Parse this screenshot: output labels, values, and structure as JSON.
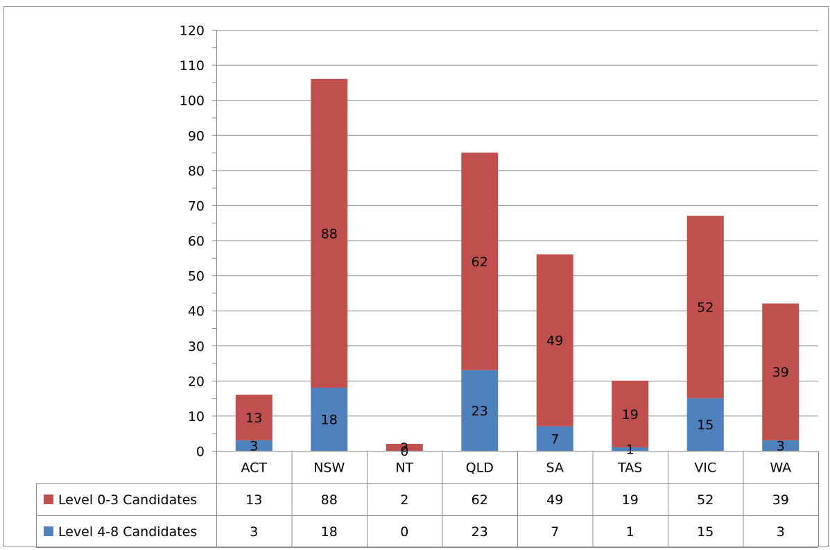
{
  "chart_data": {
    "type": "bar",
    "stacked": true,
    "categories": [
      "ACT",
      "NSW",
      "NT",
      "QLD",
      "SA",
      "TAS",
      "VIC",
      "WA"
    ],
    "series": [
      {
        "name": "Level 4-8 Candidates",
        "values": [
          3,
          18,
          0,
          23,
          7,
          1,
          15,
          3
        ],
        "color": "#4f81bd"
      },
      {
        "name": "Level 0-3 Candidates",
        "values": [
          13,
          88,
          2,
          62,
          49,
          19,
          52,
          39
        ],
        "color": "#c0504d"
      }
    ],
    "ylim": [
      0,
      120
    ],
    "y_ticks": [
      0,
      10,
      20,
      30,
      40,
      50,
      60,
      70,
      80,
      90,
      100,
      110,
      120
    ],
    "grid": true,
    "data_labels": true,
    "legend": "data table below chart",
    "data_table_rows": [
      "Level 0-3 Candidates",
      "Level 4-8 Candidates"
    ]
  }
}
